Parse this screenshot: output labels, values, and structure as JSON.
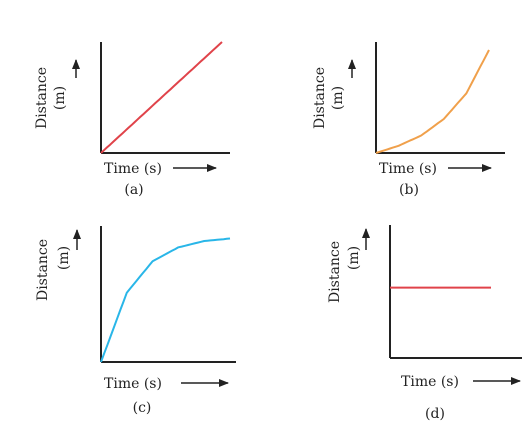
{
  "chart_data": [
    {
      "type": "line",
      "panel_label": "(a)",
      "xlabel": "Time (s)",
      "ylabel": "Distance",
      "ylabel_unit": "(m)",
      "axis_ticks": "none",
      "series": [
        {
          "color": "#e0434a",
          "shape": "straight-line",
          "x": [
            0,
            1
          ],
          "y": [
            0,
            1
          ]
        }
      ]
    },
    {
      "type": "line",
      "panel_label": "(b)",
      "xlabel": "Time (s)",
      "ylabel": "Distance",
      "ylabel_unit": "(m)",
      "axis_ticks": "none",
      "series": [
        {
          "color": "#f0a04b",
          "shape": "increasing-convex",
          "x": [
            0,
            0.2,
            0.4,
            0.6,
            0.8,
            1.0
          ],
          "y": [
            0,
            0.07,
            0.17,
            0.33,
            0.58,
            1.0
          ]
        }
      ]
    },
    {
      "type": "line",
      "panel_label": "(c)",
      "xlabel": "Time (s)",
      "ylabel": "Distance",
      "ylabel_unit": "(m)",
      "axis_ticks": "none",
      "series": [
        {
          "color": "#29b6e8",
          "shape": "increasing-concave-saturating",
          "x": [
            0,
            0.2,
            0.4,
            0.6,
            0.8,
            1.0
          ],
          "y": [
            0,
            0.55,
            0.8,
            0.91,
            0.96,
            0.98
          ]
        }
      ]
    },
    {
      "type": "line",
      "panel_label": "(d)",
      "xlabel": "Time (s)",
      "ylabel": "Distance",
      "ylabel_unit": "(m)",
      "axis_ticks": "none",
      "series": [
        {
          "color": "#e0434a",
          "shape": "constant",
          "x": [
            0,
            1
          ],
          "y": [
            0.55,
            0.55
          ]
        }
      ]
    }
  ]
}
